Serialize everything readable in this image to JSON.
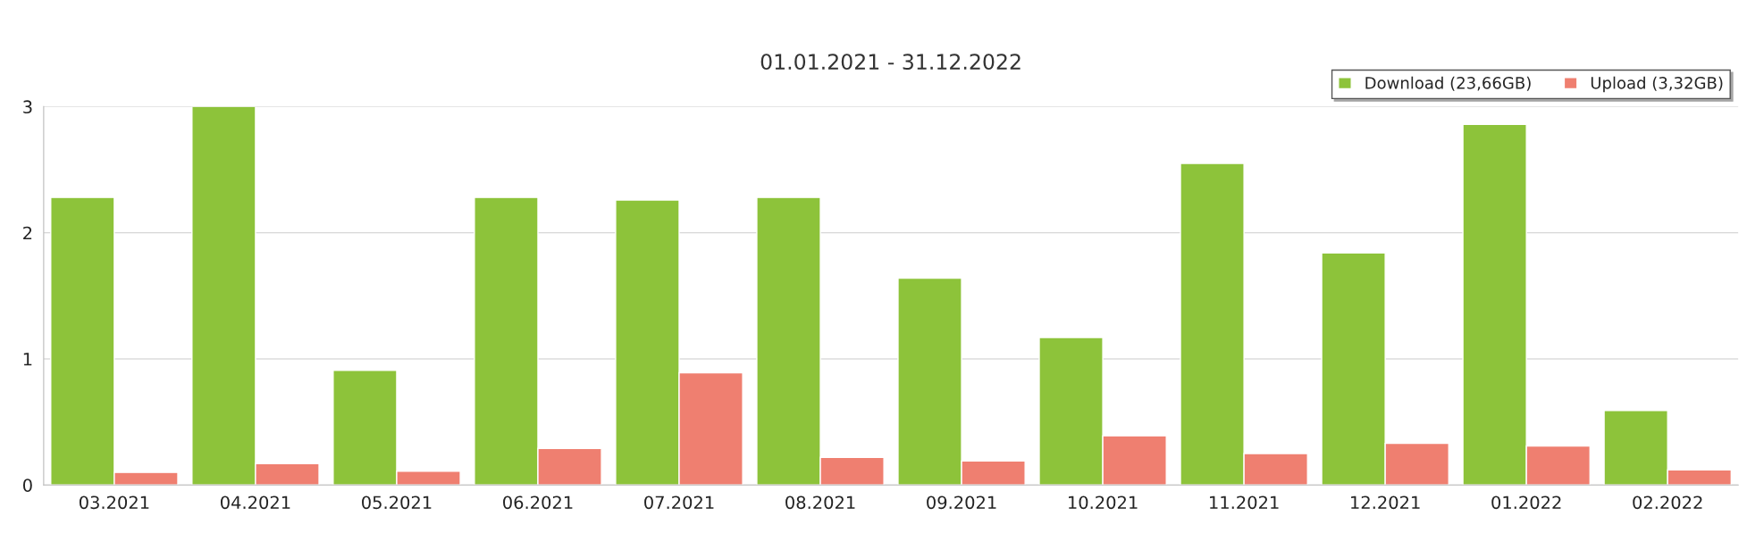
{
  "chart_data": {
    "type": "bar",
    "title": "01.01.2021 - 31.12.2022",
    "categories": [
      "03.2021",
      "04.2021",
      "05.2021",
      "06.2021",
      "07.2021",
      "08.2021",
      "09.2021",
      "10.2021",
      "11.2021",
      "12.2021",
      "01.2022",
      "02.2022"
    ],
    "series": [
      {
        "name": "Download (23,66GB)",
        "color": "#8dc33a",
        "values": [
          2.28,
          3.0,
          0.91,
          2.28,
          2.26,
          2.28,
          1.64,
          1.17,
          2.55,
          1.84,
          2.86,
          0.59
        ]
      },
      {
        "name": "Upload (3,32GB)",
        "color": "#ef7f70",
        "values": [
          0.1,
          0.17,
          0.11,
          0.29,
          0.89,
          0.22,
          0.19,
          0.39,
          0.25,
          0.33,
          0.31,
          0.12
        ]
      }
    ],
    "ylim": [
      0,
      3
    ],
    "yticks": [
      0,
      1,
      2,
      3
    ],
    "grid": "y",
    "legend": "top right"
  }
}
